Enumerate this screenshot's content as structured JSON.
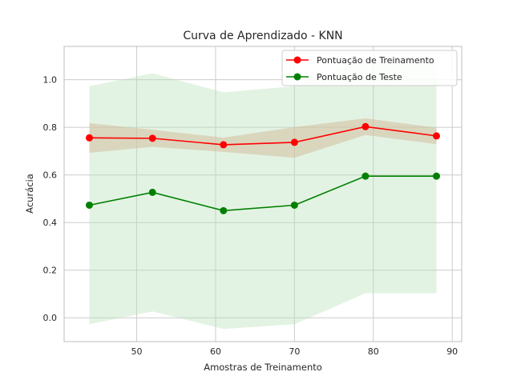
{
  "chart_data": {
    "type": "line",
    "title": "Curva de Aprendizado - KNN",
    "xlabel": "Amostras de Treinamento",
    "ylabel": "Acurácia",
    "xlim": [
      40.8,
      91.2
    ],
    "ylim": [
      -0.1,
      1.14
    ],
    "xticks": [
      50,
      60,
      70,
      80,
      90
    ],
    "yticks": [
      0.0,
      0.2,
      0.4,
      0.6,
      0.8,
      1.0
    ],
    "grid": true,
    "legend_position": "top-right",
    "x": [
      44,
      52,
      61,
      70,
      79,
      88
    ],
    "series": [
      {
        "name": "Pontuação de Treinamento",
        "color": "#ff0000",
        "band_color": "#e5a78f",
        "values": [
          0.756,
          0.754,
          0.727,
          0.737,
          0.803,
          0.764
        ],
        "band_lower": [
          0.693,
          0.718,
          0.697,
          0.672,
          0.768,
          0.729
        ],
        "band_upper": [
          0.818,
          0.79,
          0.757,
          0.801,
          0.838,
          0.799
        ]
      },
      {
        "name": "Pontuação de Teste",
        "color": "#008000",
        "band_color": "#b9e1b9",
        "values": [
          0.473,
          0.527,
          0.45,
          0.473,
          0.595,
          0.595
        ],
        "band_lower": [
          -0.027,
          0.027,
          -0.047,
          -0.027,
          0.103,
          0.103
        ],
        "band_upper": [
          0.973,
          1.027,
          0.947,
          0.973,
          1.087,
          1.087
        ]
      }
    ]
  }
}
